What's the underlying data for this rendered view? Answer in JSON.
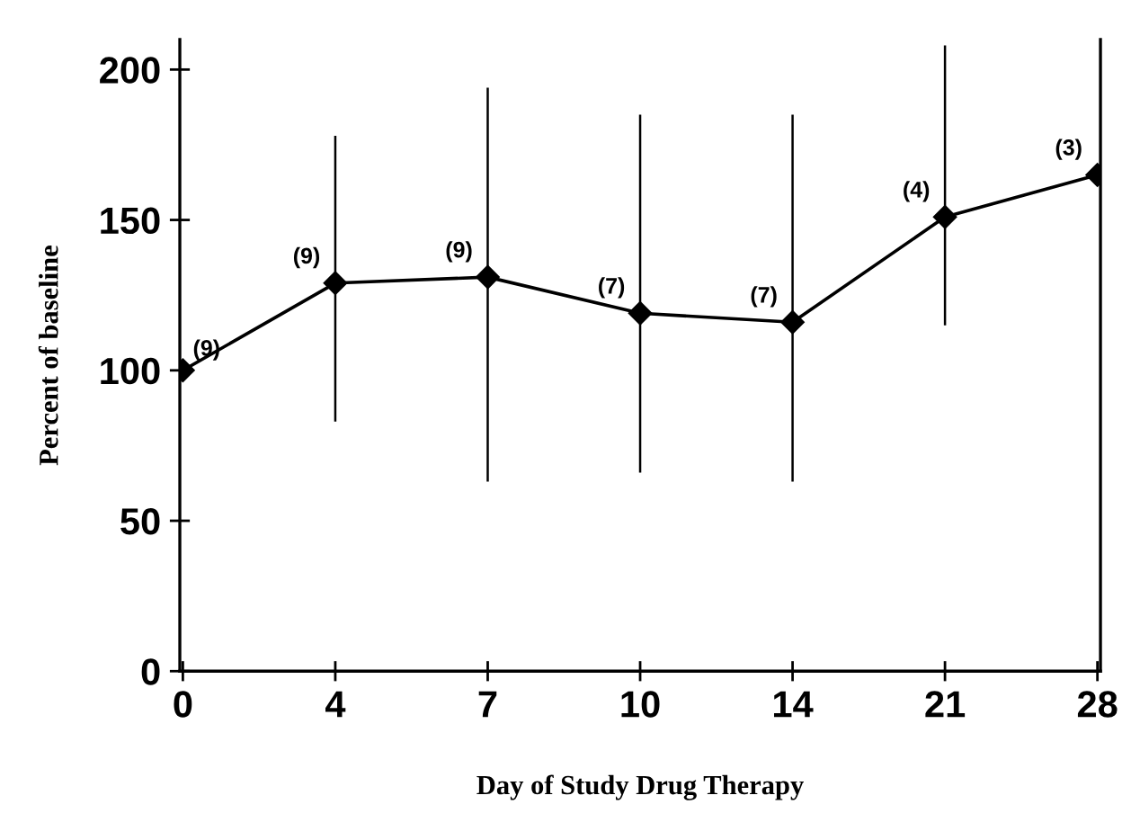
{
  "chart_data": {
    "type": "line",
    "xlabel": "Day of Study Drug Therapy",
    "ylabel": "Percent of baseline",
    "categories": [
      "0",
      "4",
      "7",
      "10",
      "14",
      "21",
      "28"
    ],
    "series": [
      {
        "color": "#000000",
        "values": [
          100,
          129,
          131,
          119,
          116,
          151,
          165
        ],
        "errors": [
          null,
          [
            83,
            178
          ],
          [
            63,
            194
          ],
          [
            66,
            185
          ],
          [
            63,
            185
          ],
          [
            115,
            208
          ],
          null
        ]
      }
    ],
    "ylim": [
      0,
      210
    ],
    "yticks": [
      0,
      50,
      100,
      150,
      200
    ],
    "grid": false,
    "legend": false,
    "marker": "diamond",
    "line_style": "solid",
    "annotations": [
      {
        "text": "(9)",
        "x": "0",
        "y": 100
      },
      {
        "text": "(9)",
        "x": "4",
        "y": 129
      },
      {
        "text": "(9)",
        "x": "7",
        "y": 131
      },
      {
        "text": "(7)",
        "x": "10",
        "y": 119
      },
      {
        "text": "(7)",
        "x": "14",
        "y": 116
      },
      {
        "text": "(4)",
        "x": "21",
        "y": 151
      },
      {
        "text": "(3)",
        "x": "28",
        "y": 165
      }
    ]
  }
}
